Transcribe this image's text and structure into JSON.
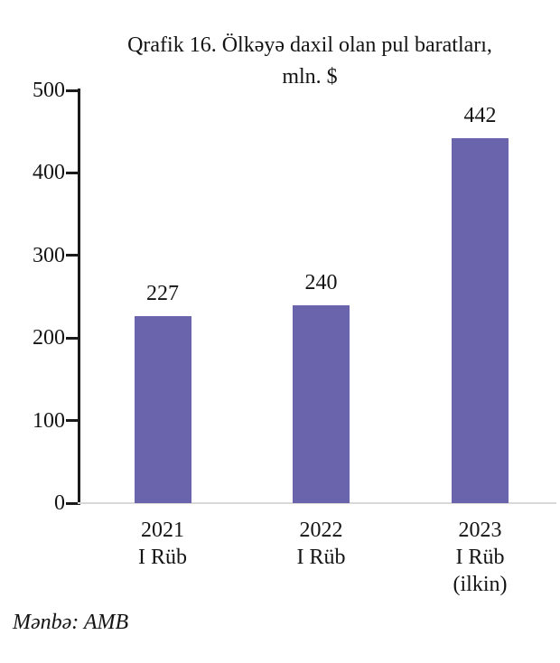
{
  "chart": {
    "title_line1": "Qrafik 16. Ölkəyə daxil olan pul baratları,",
    "title_line2": "mln. $"
  },
  "chart_data": {
    "type": "bar",
    "title": "Qrafik 16. Ölkəyə daxil olan pul baratları, mln. $",
    "categories": [
      "2021 I Rüb",
      "2022 I Rüb",
      "2023 I Rüb (ilkin)"
    ],
    "category_lines": [
      [
        "2021",
        "I Rüb"
      ],
      [
        "2022",
        "I Rüb"
      ],
      [
        "2023",
        "I Rüb (ilkin)"
      ]
    ],
    "values": [
      227,
      240,
      442
    ],
    "data_labels": [
      "227",
      "240",
      "442"
    ],
    "xlabel": "",
    "ylabel": "",
    "ylim": [
      0,
      500
    ],
    "yticks": [
      0,
      100,
      200,
      300,
      400,
      500
    ],
    "grid": false,
    "legend": "none",
    "bar_color": "#6A64AD",
    "axis_color": "#1a1a1a",
    "baseline_color": "#d8d8d8"
  },
  "footer": {
    "source": "Mənbə: AMB"
  }
}
